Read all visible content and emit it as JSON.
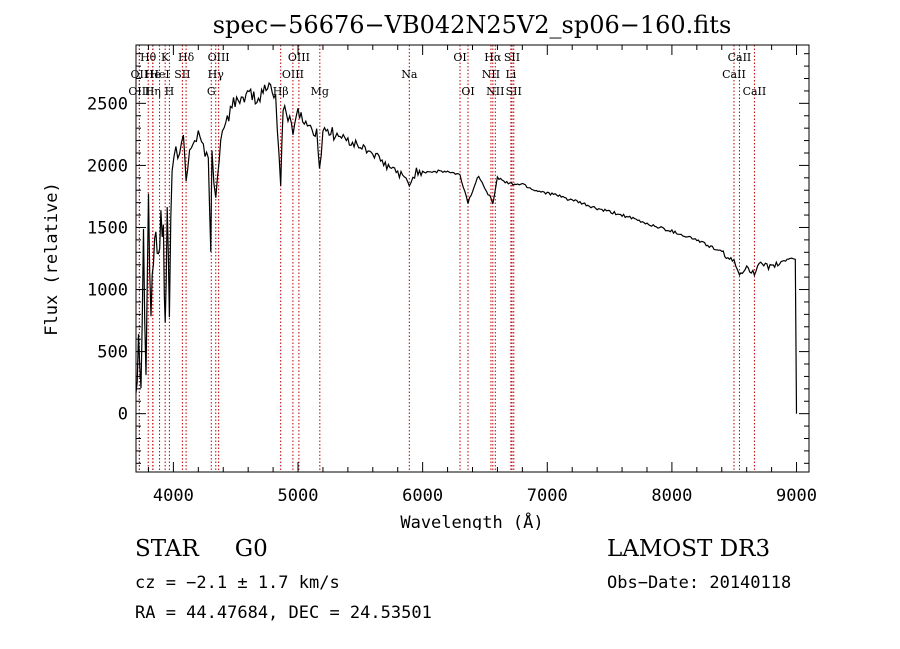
{
  "chart_data": {
    "type": "line",
    "title": "spec−56676−VB042N25V2_sp06−160.fits",
    "xlabel": "Wavelength (Å)",
    "ylabel": "Flux (relative)",
    "xlim": [
      3700,
      9100
    ],
    "ylim": [
      -470,
      2970
    ],
    "xticks": [
      4000,
      5000,
      6000,
      7000,
      8000,
      9000
    ],
    "yticks": [
      0,
      500,
      1000,
      1500,
      2000,
      2500
    ],
    "series": [
      {
        "name": "flux",
        "x": [
          3700,
          3720,
          3740,
          3760,
          3780,
          3800,
          3820,
          3840,
          3860,
          3880,
          3900,
          3920,
          3934,
          3950,
          3968,
          3990,
          4020,
          4050,
          4080,
          4102,
          4130,
          4170,
          4200,
          4240,
          4280,
          4300,
          4310,
          4340,
          4380,
          4420,
          4470,
          4520,
          4570,
          4620,
          4670,
          4720,
          4780,
          4820,
          4861,
          4880,
          4920,
          4960,
          5000,
          5050,
          5100,
          5150,
          5172,
          5200,
          5300,
          5400,
          5500,
          5600,
          5700,
          5800,
          5893,
          5950,
          6100,
          6200,
          6300,
          6364,
          6450,
          6563,
          6600,
          6700,
          6800,
          6900,
          7000,
          7200,
          7400,
          7600,
          7800,
          8000,
          8200,
          8400,
          8498,
          8542,
          8600,
          8662,
          8700,
          8800,
          8900,
          8960,
          8990,
          9000
        ],
        "y": [
          200,
          700,
          300,
          1400,
          500,
          1700,
          800,
          1300,
          1500,
          1100,
          1700,
          1400,
          700,
          1600,
          900,
          1900,
          2150,
          2050,
          2250,
          1900,
          2150,
          2200,
          2250,
          2150,
          2050,
          1350,
          2100,
          1700,
          2250,
          2300,
          2500,
          2550,
          2500,
          2600,
          2500,
          2600,
          2650,
          2550,
          1850,
          2450,
          2400,
          2300,
          2450,
          2350,
          2300,
          2250,
          1950,
          2300,
          2250,
          2200,
          2150,
          2100,
          2000,
          1950,
          1850,
          1950,
          1950,
          1950,
          1920,
          1700,
          1920,
          1700,
          1900,
          1850,
          1850,
          1800,
          1780,
          1720,
          1650,
          1600,
          1530,
          1470,
          1400,
          1300,
          1220,
          1120,
          1190,
          1120,
          1200,
          1180,
          1230,
          1260,
          1250,
          0
        ]
      }
    ],
    "lines": [
      {
        "label": "Hθ",
        "wavelength": 3798,
        "row": 1
      },
      {
        "label": "OII",
        "wavelength": 3727,
        "row": 2
      },
      {
        "label": "OIII",
        "wavelength": 3727,
        "row": 3
      },
      {
        "label": "He",
        "wavelength": 3835,
        "row": 2
      },
      {
        "label": "Hη",
        "wavelength": 3835,
        "row": 3
      },
      {
        "label": "K",
        "wavelength": 3934,
        "row": 1
      },
      {
        "label": "HeI",
        "wavelength": 3889,
        "row": 2
      },
      {
        "label": "H",
        "wavelength": 3968,
        "row": 3
      },
      {
        "label": "SII",
        "wavelength": 4072,
        "row": 2
      },
      {
        "label": "Hδ",
        "wavelength": 4102,
        "row": 1
      },
      {
        "label": "OIII",
        "wavelength": 4363,
        "row": 1
      },
      {
        "label": "Hγ",
        "wavelength": 4340,
        "row": 2
      },
      {
        "label": "G",
        "wavelength": 4304,
        "row": 3
      },
      {
        "label": "OIII",
        "wavelength": 5007,
        "row": 1
      },
      {
        "label": "OIII",
        "wavelength": 4959,
        "row": 2
      },
      {
        "label": "Hβ",
        "wavelength": 4861,
        "row": 3
      },
      {
        "label": "Mg",
        "wavelength": 5175,
        "row": 3
      },
      {
        "label": "Na",
        "wavelength": 5893,
        "row": 2
      },
      {
        "label": "OI",
        "wavelength": 6300,
        "row": 1
      },
      {
        "label": "OI",
        "wavelength": 6364,
        "row": 3
      },
      {
        "label": "Hα",
        "wavelength": 6563,
        "row": 1
      },
      {
        "label": "NII",
        "wavelength": 6548,
        "row": 2
      },
      {
        "label": "NII",
        "wavelength": 6583,
        "row": 3
      },
      {
        "label": "SII",
        "wavelength": 6717,
        "row": 1
      },
      {
        "label": "Li",
        "wavelength": 6708,
        "row": 2
      },
      {
        "label": "SII",
        "wavelength": 6731,
        "row": 3
      },
      {
        "label": "CaII",
        "wavelength": 8542,
        "row": 1
      },
      {
        "label": "CaII",
        "wavelength": 8498,
        "row": 2
      },
      {
        "label": "CaII",
        "wavelength": 8662,
        "row": 3
      }
    ]
  },
  "info": {
    "class": "STAR",
    "subclass": "G0",
    "survey": "LAMOST DR3",
    "redshift": "cz = −2.1 ± 1.7 km/s",
    "obs_date": "Obs−Date: 20140118",
    "coords": "RA =  44.47684, DEC =  24.53501"
  }
}
